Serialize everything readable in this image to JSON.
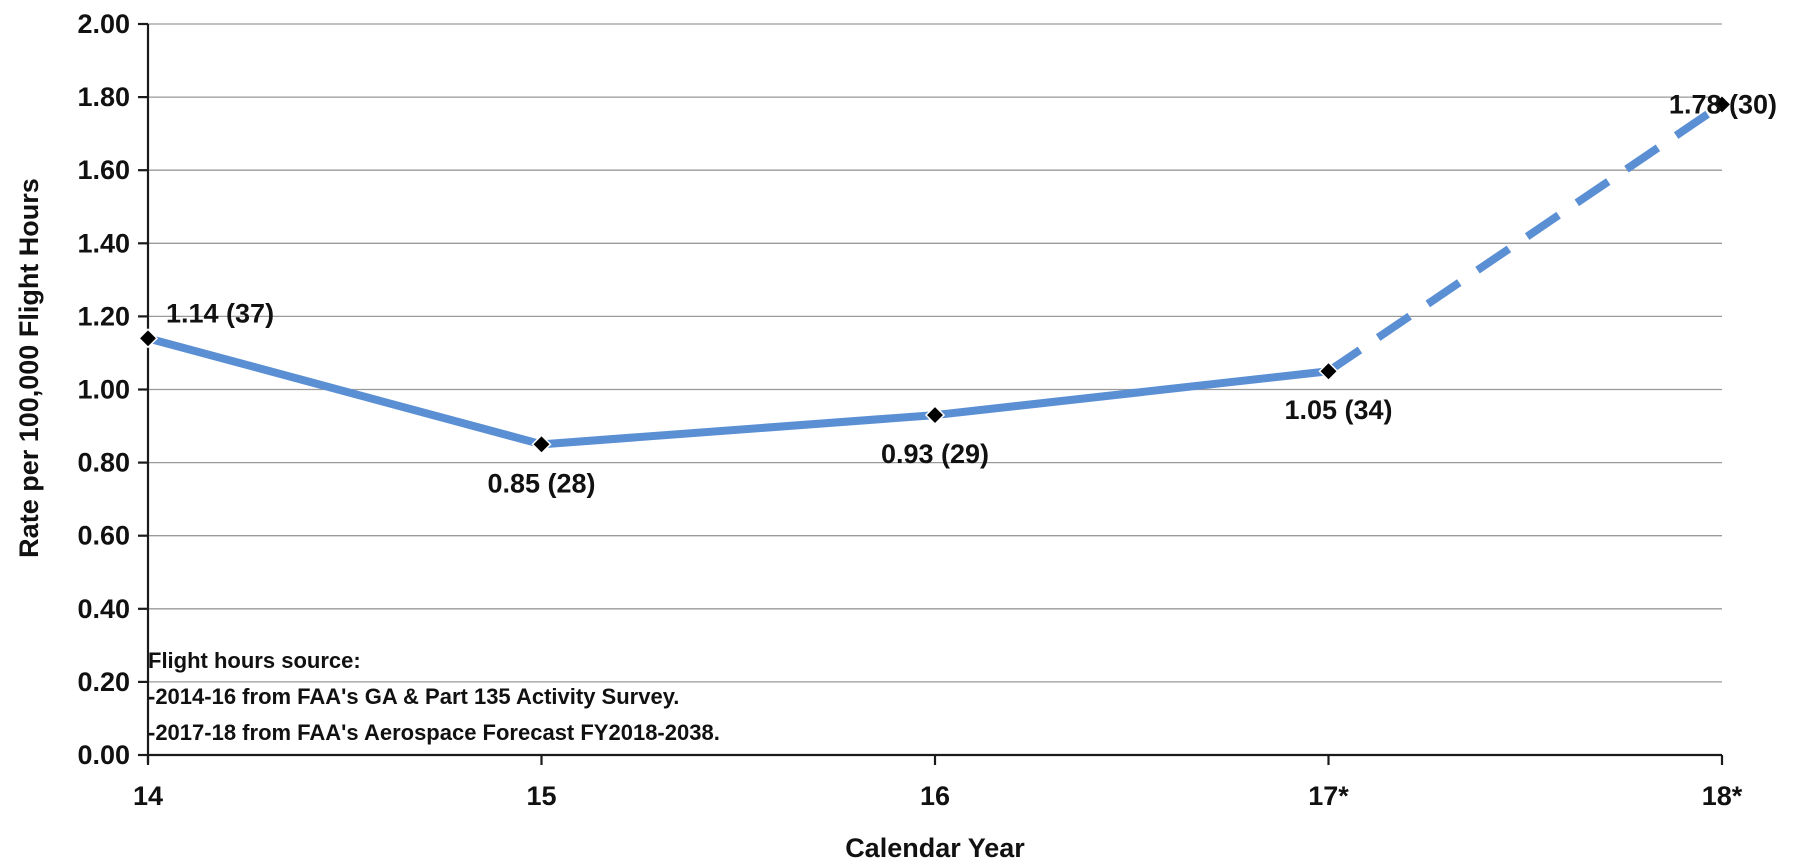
{
  "chart_data": {
    "type": "line",
    "title": "",
    "xlabel": "Calendar Year",
    "ylabel": "Rate per 100,000 Flight Hours",
    "ylim": [
      0,
      2.0
    ],
    "ytick_step": 0.2,
    "yticks": [
      "0.00",
      "0.20",
      "0.40",
      "0.60",
      "0.80",
      "1.00",
      "1.20",
      "1.40",
      "1.60",
      "1.80",
      "2.00"
    ],
    "grid": true,
    "categories": [
      "14",
      "15",
      "16",
      "17*",
      "18*"
    ],
    "values": [
      1.14,
      0.85,
      0.93,
      1.05,
      1.78
    ],
    "data_labels": [
      "1.14 (37)",
      "0.85 (28)",
      "0.93 (29)",
      "1.05 (34)",
      "1.78 (30)"
    ],
    "dashed_from_index": 3,
    "line_color": "#5b8fd4",
    "marker_color": "#000000",
    "annotation": [
      "Flight hours source:",
      "-2014-16 from FAA's GA & Part 135 Activity Survey.",
      "-2017-18 from FAA's Aerospace Forecast FY2018-2038."
    ]
  }
}
